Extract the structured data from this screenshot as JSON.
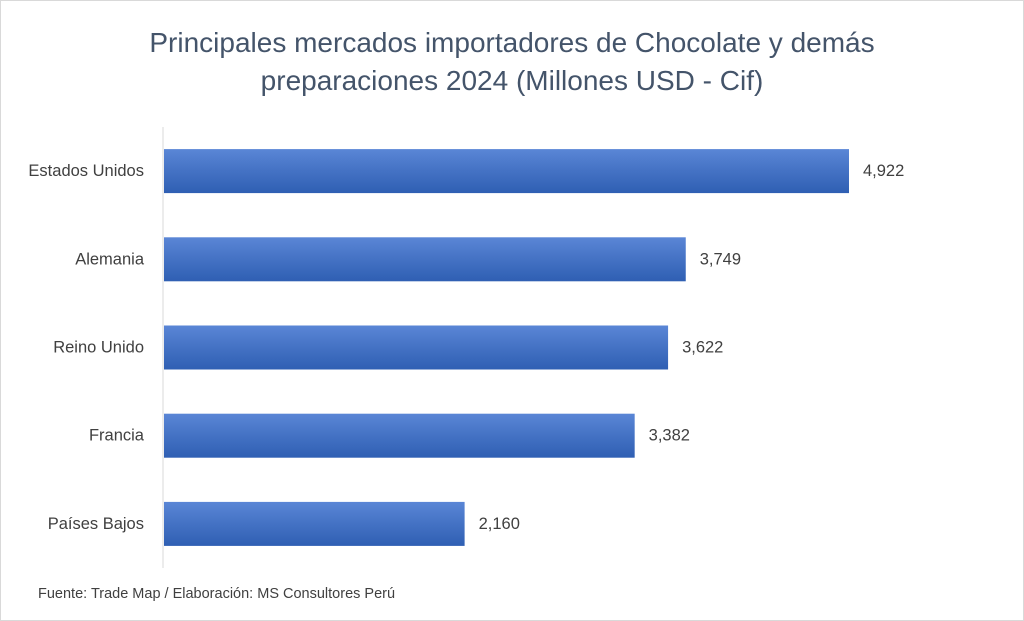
{
  "chart_data": {
    "type": "bar",
    "orientation": "horizontal",
    "title_lines": [
      "Principales mercados importadores de Chocolate y demás",
      "preparaciones 2024 (Millones USD - Cif)"
    ],
    "categories": [
      "Estados Unidos",
      "Alemania",
      "Reino Unido",
      "Francia",
      "Países Bajos"
    ],
    "values": [
      4922,
      3749,
      3622,
      3382,
      2160
    ],
    "value_labels": [
      "4,922",
      "3,749",
      "3,622",
      "3,382",
      "2,160"
    ],
    "xlim": [
      0,
      4922
    ],
    "bar_color": "#4472c4",
    "grid": false,
    "legend": "none"
  },
  "footer": {
    "source": "Fuente: Trade Map / Elaboración: MS Consultores Perú"
  }
}
